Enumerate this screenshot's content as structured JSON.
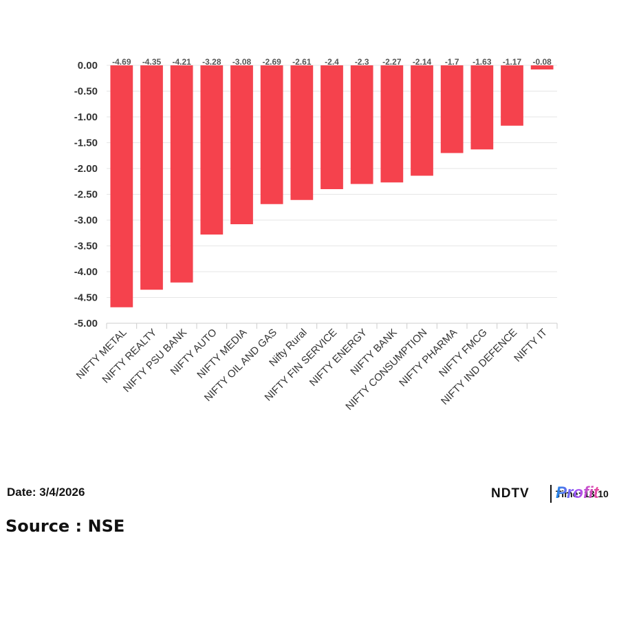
{
  "chart_data": {
    "type": "bar",
    "categories": [
      "NIFTY METAL",
      "NIFTY REALTY",
      "NIFTY PSU BANK",
      "NIFTY AUTO",
      "NIFTY MEDIA",
      "NIFTY OIL AND GAS",
      "Nifty Rural",
      "NIFTY FIN SERVICE",
      "NIFTY ENERGY",
      "NIFTY BANK",
      "NIFTY CONSUMPTION",
      "NIFTY PHARMA",
      "NIFTY FMCG",
      "NIFTY IND DEFENCE",
      "NIFTY IT"
    ],
    "values": [
      -4.69,
      -4.35,
      -4.21,
      -3.28,
      -3.08,
      -2.69,
      -2.61,
      -2.4,
      -2.3,
      -2.27,
      -2.14,
      -1.7,
      -1.63,
      -1.17,
      -0.08
    ],
    "data_labels": [
      "-4.69",
      "-4.35",
      "-4.21",
      "-3.28",
      "-3.08",
      "-2.69",
      "-2.61",
      "-2.4",
      "-2.3",
      "-2.27",
      "-2.14",
      "-1.7",
      "-1.63",
      "-1.17",
      "-0.08"
    ],
    "y_ticks": [
      0,
      -0.5,
      -1,
      -1.5,
      -2,
      -2.5,
      -3,
      -3.5,
      -4,
      -4.5,
      -5
    ],
    "y_tick_labels": [
      "0.00",
      "-0.50",
      "-1.00",
      "-1.50",
      "-2.00",
      "-2.50",
      "-3.00",
      "-3.50",
      "-4.00",
      "-4.50",
      "-5.00"
    ],
    "ylim": [
      -5,
      0
    ],
    "grid": true,
    "bar_color": "#f5424d"
  },
  "footer": {
    "date": "Date: 3/4/2026",
    "source": "Source : NSE"
  },
  "logo": {
    "brand": "NDTV",
    "time": "Time: 13:10",
    "profit": "Profit"
  }
}
